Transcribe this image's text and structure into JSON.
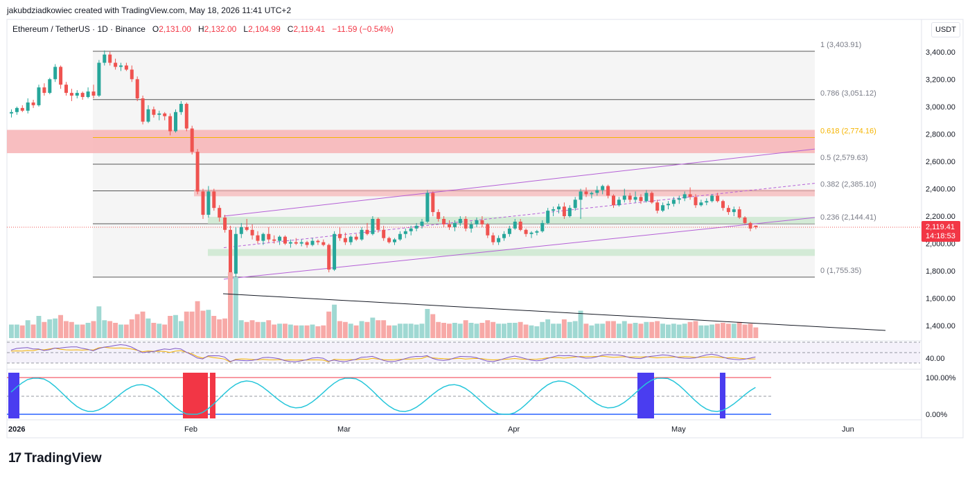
{
  "attribution": "jakubdziadkowiec created with TradingView.com, May 18, 2026 11:41 UTC+2",
  "symbol_title": "Ethereum / TetherUS · 1D · Binance",
  "ohlc": {
    "o_label": "O",
    "o": "2,131.00",
    "h_label": "H",
    "h": "2,132.00",
    "l_label": "L",
    "l": "2,104.99",
    "c_label": "C",
    "c": "2,119.41",
    "change": "−11.59 (−0.54%)"
  },
  "currency": "USDT",
  "price_axis_ticks": [
    "3,400.00",
    "3,200.00",
    "3,000.00",
    "2,800.00",
    "2,600.00",
    "2,400.00",
    "2,200.00",
    "2,000.00",
    "1,800.00",
    "1,600.00",
    "1,400.00"
  ],
  "last_price_label": "2,119.41",
  "countdown_label": "14:18:53",
  "time_axis_labels": [
    "2026",
    "Feb",
    "Mar",
    "Apr",
    "May",
    "Jun"
  ],
  "fib_levels": [
    {
      "label": "1 (3,403.91)",
      "value": 3403.91,
      "color": "#787b86"
    },
    {
      "label": "0.786 (3,051.12)",
      "value": 3051.12,
      "color": "#787b86"
    },
    {
      "label": "0.618 (2,774.16)",
      "value": 2774.16,
      "color": "#f5b400"
    },
    {
      "label": "0.5 (2,579.63)",
      "value": 2579.63,
      "color": "#787b86"
    },
    {
      "label": "0.382 (2,385.10)",
      "value": 2385.1,
      "color": "#787b86"
    },
    {
      "label": "0.236 (2,144.41)",
      "value": 2144.41,
      "color": "#787b86"
    },
    {
      "label": "0 (1,755.35)",
      "value": 1755.35,
      "color": "#787b86"
    }
  ],
  "rsi_label": "40.00",
  "osc_labels": [
    "100.00%",
    "0.00%"
  ],
  "brand": {
    "logo": "17",
    "name": "TradingView"
  },
  "colors": {
    "up": "#26a69a",
    "down": "#ef5350",
    "channel": "#b45fd6",
    "fib_gold": "#f5b400",
    "zone_red": "#f7b3b5",
    "zone_green": "#cfe9d3",
    "rsi": "#7e57c2",
    "rsi_ma": "#f5b400",
    "osc_block": "#4a3df0",
    "osc_red": "#f23645"
  },
  "chart_data": {
    "type": "candlestick",
    "title": "Ethereum / TetherUS · 1D · Binance",
    "ylim": [
      1300,
      3500
    ],
    "series": [
      {
        "name": "ETH/USDT",
        "values": [
          [
            2950,
            2980,
            2920,
            2960
          ],
          [
            2960,
            3000,
            2940,
            2990
          ],
          [
            2990,
            3010,
            2960,
            2970
          ],
          [
            2970,
            3060,
            2950,
            3030
          ],
          [
            3030,
            3050,
            2990,
            3010
          ],
          [
            3010,
            3160,
            3000,
            3140
          ],
          [
            3140,
            3170,
            3080,
            3100
          ],
          [
            3100,
            3210,
            3090,
            3200
          ],
          [
            3200,
            3310,
            3180,
            3290
          ],
          [
            3290,
            3300,
            3130,
            3160
          ],
          [
            3160,
            3180,
            3080,
            3100
          ],
          [
            3100,
            3130,
            3040,
            3080
          ],
          [
            3080,
            3120,
            3060,
            3100
          ],
          [
            3100,
            3110,
            3050,
            3070
          ],
          [
            3070,
            3140,
            3060,
            3110
          ],
          [
            3110,
            3160,
            3060,
            3080
          ],
          [
            3080,
            3340,
            3070,
            3320
          ],
          [
            3320,
            3410,
            3300,
            3380
          ],
          [
            3380,
            3400,
            3300,
            3320
          ],
          [
            3320,
            3350,
            3270,
            3290
          ],
          [
            3290,
            3320,
            3260,
            3300
          ],
          [
            3300,
            3320,
            3260,
            3270
          ],
          [
            3270,
            3300,
            3180,
            3200
          ],
          [
            3200,
            3220,
            3040,
            3060
          ],
          [
            3060,
            3080,
            2870,
            2890
          ],
          [
            2890,
            3010,
            2880,
            2980
          ],
          [
            2980,
            3000,
            2920,
            2940
          ],
          [
            2940,
            2970,
            2900,
            2950
          ],
          [
            2950,
            2960,
            2900,
            2930
          ],
          [
            2930,
            2950,
            2790,
            2820
          ],
          [
            2820,
            2980,
            2810,
            2960
          ],
          [
            2960,
            3040,
            2940,
            3020
          ],
          [
            3020,
            3030,
            2820,
            2840
          ],
          [
            2840,
            2860,
            2650,
            2670
          ],
          [
            2670,
            2690,
            2360,
            2380
          ],
          [
            2380,
            2400,
            2180,
            2210
          ],
          [
            2210,
            2420,
            2190,
            2380
          ],
          [
            2380,
            2400,
            2240,
            2260
          ],
          [
            2260,
            2280,
            2160,
            2190
          ],
          [
            2190,
            2210,
            2080,
            2100
          ],
          [
            2100,
            2130,
            1750,
            1780
          ],
          [
            1780,
            2120,
            1750,
            2070
          ],
          [
            2070,
            2150,
            2040,
            2120
          ],
          [
            2120,
            2180,
            2090,
            2100
          ],
          [
            2100,
            2140,
            2030,
            2060
          ],
          [
            2060,
            2090,
            2000,
            2020
          ],
          [
            2020,
            2080,
            1990,
            2070
          ],
          [
            2070,
            2120,
            2010,
            2030
          ],
          [
            2030,
            2060,
            2000,
            2020
          ],
          [
            2020,
            2060,
            1990,
            2050
          ],
          [
            2050,
            2060,
            1990,
            2000
          ],
          [
            2000,
            2030,
            1970,
            2010
          ],
          [
            2010,
            2040,
            1990,
            2000
          ],
          [
            2000,
            2030,
            1980,
            2010
          ],
          [
            2010,
            2020,
            1970,
            1990
          ],
          [
            1990,
            2040,
            1980,
            2020
          ],
          [
            2020,
            2030,
            1990,
            2010
          ],
          [
            2010,
            2030,
            1980,
            1990
          ],
          [
            1990,
            2000,
            1790,
            1810
          ],
          [
            1810,
            2090,
            1800,
            2070
          ],
          [
            2070,
            2120,
            2020,
            2040
          ],
          [
            2040,
            2080,
            1990,
            2010
          ],
          [
            2010,
            2060,
            1990,
            2050
          ],
          [
            2050,
            2070,
            2020,
            2030
          ],
          [
            2030,
            2120,
            2020,
            2100
          ],
          [
            2100,
            2150,
            2060,
            2070
          ],
          [
            2070,
            2200,
            2060,
            2180
          ],
          [
            2180,
            2190,
            2080,
            2100
          ],
          [
            2100,
            2130,
            2020,
            2040
          ],
          [
            2040,
            2050,
            2000,
            2010
          ],
          [
            2010,
            2040,
            1990,
            2030
          ],
          [
            2030,
            2090,
            2020,
            2070
          ],
          [
            2070,
            2110,
            2040,
            2090
          ],
          [
            2090,
            2130,
            2060,
            2110
          ],
          [
            2110,
            2150,
            2090,
            2130
          ],
          [
            2130,
            2180,
            2110,
            2160
          ],
          [
            2160,
            2390,
            2150,
            2370
          ],
          [
            2370,
            2380,
            2200,
            2230
          ],
          [
            2230,
            2250,
            2160,
            2180
          ],
          [
            2180,
            2200,
            2120,
            2140
          ],
          [
            2140,
            2170,
            2100,
            2120
          ],
          [
            2120,
            2170,
            2090,
            2150
          ],
          [
            2150,
            2200,
            2130,
            2180
          ],
          [
            2180,
            2200,
            2090,
            2110
          ],
          [
            2110,
            2160,
            2080,
            2140
          ],
          [
            2140,
            2190,
            2120,
            2170
          ],
          [
            2170,
            2200,
            2120,
            2140
          ],
          [
            2140,
            2150,
            2040,
            2060
          ],
          [
            2060,
            2080,
            1990,
            2010
          ],
          [
            2010,
            2060,
            1990,
            2040
          ],
          [
            2040,
            2090,
            2020,
            2070
          ],
          [
            2070,
            2130,
            2050,
            2110
          ],
          [
            2110,
            2180,
            2100,
            2160
          ],
          [
            2160,
            2180,
            2090,
            2100
          ],
          [
            2100,
            2110,
            2050,
            2070
          ],
          [
            2070,
            2090,
            2040,
            2080
          ],
          [
            2080,
            2100,
            2060,
            2090
          ],
          [
            2090,
            2170,
            2080,
            2150
          ],
          [
            2150,
            2260,
            2140,
            2240
          ],
          [
            2240,
            2270,
            2200,
            2250
          ],
          [
            2250,
            2290,
            2220,
            2270
          ],
          [
            2270,
            2300,
            2180,
            2200
          ],
          [
            2200,
            2280,
            2190,
            2260
          ],
          [
            2260,
            2340,
            2240,
            2320
          ],
          [
            2320,
            2400,
            2180,
            2380
          ],
          [
            2380,
            2410,
            2340,
            2360
          ],
          [
            2360,
            2380,
            2330,
            2370
          ],
          [
            2370,
            2420,
            2350,
            2390
          ],
          [
            2390,
            2430,
            2360,
            2420
          ],
          [
            2420,
            2430,
            2330,
            2350
          ],
          [
            2350,
            2360,
            2260,
            2280
          ],
          [
            2280,
            2340,
            2270,
            2320
          ],
          [
            2320,
            2400,
            2300,
            2350
          ],
          [
            2350,
            2370,
            2300,
            2320
          ],
          [
            2320,
            2380,
            2300,
            2340
          ],
          [
            2340,
            2360,
            2290,
            2310
          ],
          [
            2310,
            2390,
            2300,
            2370
          ],
          [
            2370,
            2380,
            2290,
            2300
          ],
          [
            2300,
            2320,
            2220,
            2240
          ],
          [
            2240,
            2300,
            2230,
            2280
          ],
          [
            2280,
            2310,
            2250,
            2290
          ],
          [
            2290,
            2340,
            2270,
            2320
          ],
          [
            2320,
            2350,
            2290,
            2330
          ],
          [
            2330,
            2380,
            2310,
            2360
          ],
          [
            2360,
            2410,
            2320,
            2340
          ],
          [
            2340,
            2360,
            2260,
            2280
          ],
          [
            2280,
            2320,
            2270,
            2300
          ],
          [
            2300,
            2330,
            2280,
            2310
          ],
          [
            2310,
            2360,
            2300,
            2350
          ],
          [
            2350,
            2370,
            2300,
            2310
          ],
          [
            2310,
            2320,
            2240,
            2260
          ],
          [
            2260,
            2280,
            2210,
            2230
          ],
          [
            2230,
            2270,
            2200,
            2250
          ],
          [
            2250,
            2270,
            2180,
            2190
          ],
          [
            2190,
            2200,
            2140,
            2150
          ],
          [
            2150,
            2160,
            2090,
            2110
          ],
          [
            2131,
            2132,
            2104.99,
            2119.41
          ]
        ]
      }
    ],
    "price_axis": [
      1400,
      1600,
      1800,
      2000,
      2200,
      2400,
      2600,
      2800,
      3000,
      3200,
      3400
    ],
    "x_labels": [
      "2026",
      "Feb",
      "Mar",
      "Apr",
      "May",
      "Jun"
    ]
  }
}
